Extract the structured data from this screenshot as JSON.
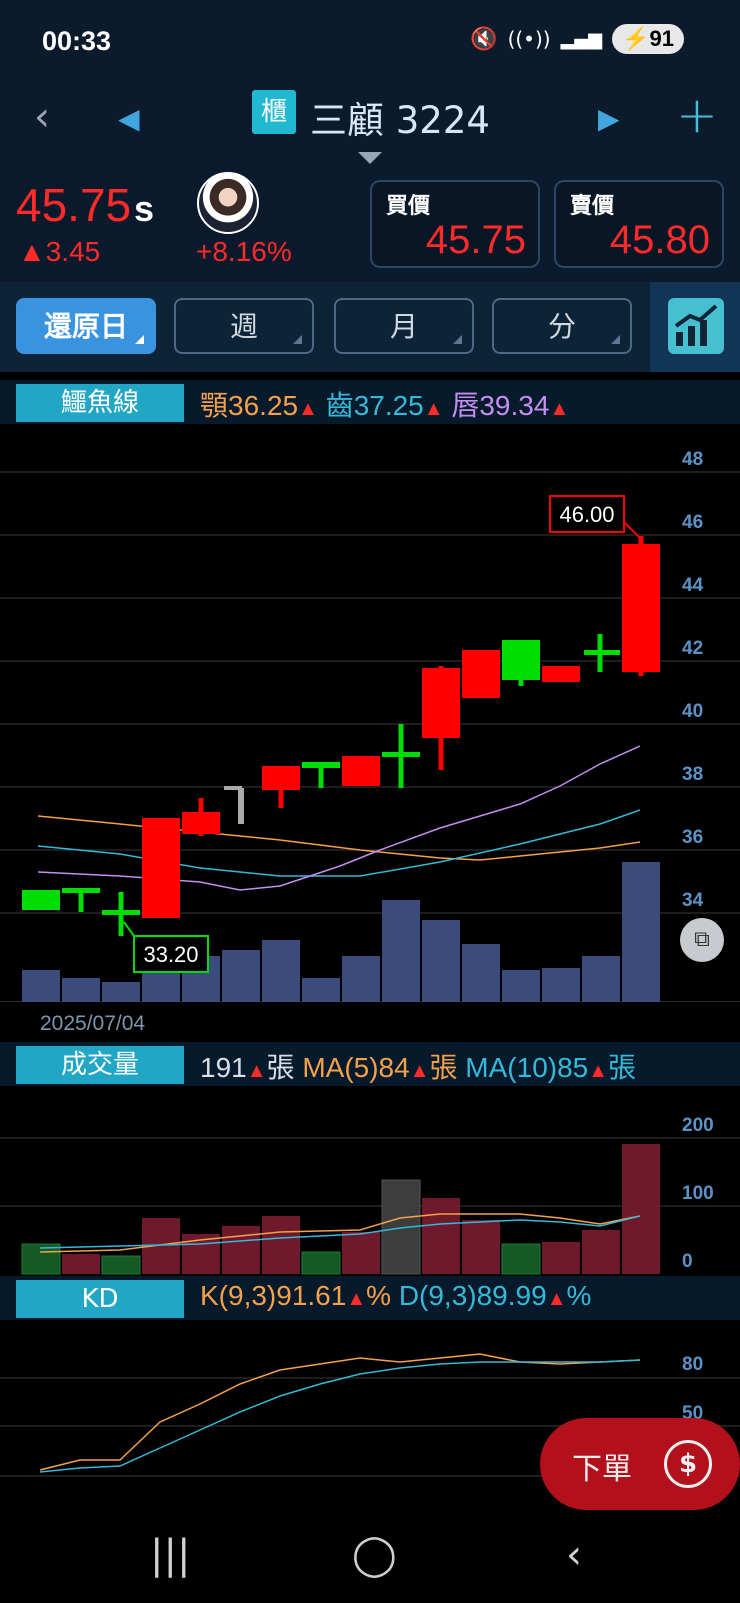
{
  "status_bar": {
    "time": "00:33",
    "battery": "91"
  },
  "header": {
    "market_badge": "櫃",
    "stock_name": "三顧 3224"
  },
  "quote": {
    "price": "45.75",
    "price_suffix": "s",
    "change": "▲3.45",
    "change_pct": "+8.16%",
    "bid_label": "買價",
    "bid": "45.75",
    "ask_label": "賣價",
    "ask": "45.80"
  },
  "periods": [
    "還原日",
    "週",
    "月",
    "分"
  ],
  "alligator": {
    "tag": "鱷魚線",
    "jaw_label": "顎",
    "jaw": "36.25",
    "teeth_label": "齒",
    "teeth": "37.25",
    "lips_label": "唇",
    "lips": "39.34"
  },
  "main_chart": {
    "y_ticks": [
      "48",
      "46",
      "44",
      "42",
      "40",
      "38",
      "36",
      "34"
    ],
    "high_label": "46.00",
    "low_label": "33.20",
    "date": "2025/07/04"
  },
  "volume": {
    "tag": "成交量",
    "value": "191",
    "unit": "張",
    "ma5_label": "MA(5)",
    "ma5": "84",
    "ma10_label": "MA(10)",
    "ma10": "85",
    "y_ticks": [
      "200",
      "100",
      "0"
    ]
  },
  "kd": {
    "tag": "KD",
    "k_label": "K(9,3)",
    "k": "91.61",
    "d_label": "D(9,3)",
    "d": "89.99",
    "unit": "%",
    "y_ticks": [
      "80",
      "50"
    ]
  },
  "order_button": {
    "label": "下單",
    "coin": "$"
  },
  "colors": {
    "up": "#ff0000",
    "down": "#00cc00",
    "jaw": "#f3a14a",
    "teeth": "#35b9d8",
    "lips": "#c48ff0",
    "accent": "#21a6c6"
  }
}
